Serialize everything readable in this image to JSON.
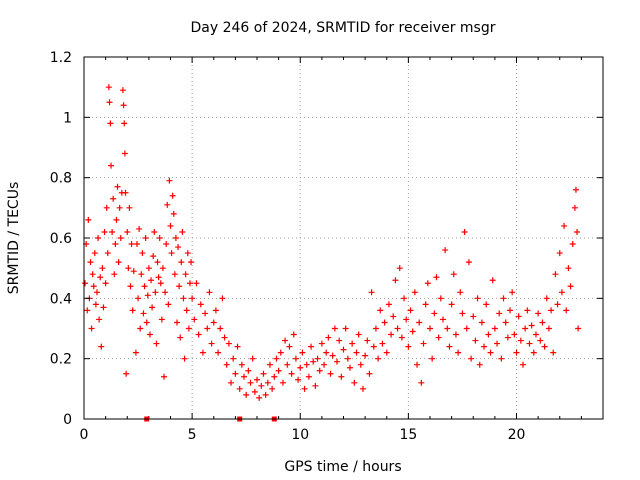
{
  "chart_data": {
    "type": "scatter",
    "title": "Day 246 of 2024, SRMTID for receiver msgr",
    "xlabel": "GPS time / hours",
    "ylabel": "SRMTID / TECUs",
    "xlim": [
      0,
      24
    ],
    "ylim": [
      0,
      1.2
    ],
    "x_ticks": [
      0,
      5,
      10,
      15,
      20
    ],
    "x_tick_labels": [
      "0",
      "5",
      "10",
      "15",
      "20"
    ],
    "y_ticks": [
      0,
      0.2,
      0.4,
      0.6,
      0.8,
      1.0,
      1.2
    ],
    "y_tick_labels": [
      "0",
      "0.2",
      "0.4",
      "0.6",
      "0.8",
      "1",
      "1.2"
    ],
    "grid": true,
    "marker": "+",
    "color": "#ff0000",
    "series": [
      {
        "name": "SRMTID",
        "points": [
          [
            0.05,
            0.45
          ],
          [
            0.1,
            0.58
          ],
          [
            0.15,
            0.36
          ],
          [
            0.2,
            0.66
          ],
          [
            0.25,
            0.4
          ],
          [
            0.3,
            0.52
          ],
          [
            0.35,
            0.3
          ],
          [
            0.4,
            0.48
          ],
          [
            0.45,
            0.44
          ],
          [
            0.5,
            0.55
          ],
          [
            0.55,
            0.38
          ],
          [
            0.6,
            0.42
          ],
          [
            0.65,
            0.6
          ],
          [
            0.7,
            0.33
          ],
          [
            0.75,
            0.47
          ],
          [
            0.8,
            0.24
          ],
          [
            0.85,
            0.5
          ],
          [
            0.9,
            0.37
          ],
          [
            0.95,
            0.62
          ],
          [
            1.0,
            0.45
          ],
          [
            1.05,
            0.7
          ],
          [
            1.1,
            0.55
          ],
          [
            1.15,
            1.1
          ],
          [
            1.18,
            1.05
          ],
          [
            1.22,
            0.98
          ],
          [
            1.25,
            0.84
          ],
          [
            1.3,
            0.62
          ],
          [
            1.35,
            0.73
          ],
          [
            1.4,
            0.48
          ],
          [
            1.45,
            0.58
          ],
          [
            1.5,
            0.66
          ],
          [
            1.55,
            0.77
          ],
          [
            1.6,
            0.52
          ],
          [
            1.65,
            0.7
          ],
          [
            1.7,
            0.6
          ],
          [
            1.75,
            0.75
          ],
          [
            1.8,
            1.09
          ],
          [
            1.83,
            1.04
          ],
          [
            1.86,
            0.98
          ],
          [
            1.89,
            0.88
          ],
          [
            1.92,
            0.75
          ],
          [
            1.95,
            0.15
          ],
          [
            2.0,
            0.62
          ],
          [
            2.05,
            0.5
          ],
          [
            2.1,
            0.7
          ],
          [
            2.15,
            0.44
          ],
          [
            2.2,
            0.58
          ],
          [
            2.25,
            0.36
          ],
          [
            2.3,
            0.49
          ],
          [
            2.4,
            0.22
          ],
          [
            2.45,
            0.58
          ],
          [
            2.5,
            0.4
          ],
          [
            2.55,
            0.63
          ],
          [
            2.6,
            0.3
          ],
          [
            2.65,
            0.48
          ],
          [
            2.7,
            0.55
          ],
          [
            2.75,
            0.35
          ],
          [
            2.8,
            0.44
          ],
          [
            2.85,
            0.6
          ],
          [
            2.9,
            0.32
          ],
          [
            2.95,
            0.41
          ],
          [
            3.0,
            0.5
          ],
          [
            3.05,
            0.28
          ],
          [
            3.1,
            0.46
          ],
          [
            3.15,
            0.37
          ],
          [
            3.2,
            0.54
          ],
          [
            3.25,
            0.62
          ],
          [
            3.3,
            0.42
          ],
          [
            3.35,
            0.25
          ],
          [
            3.4,
            0.52
          ],
          [
            3.45,
            0.47
          ],
          [
            3.5,
            0.6
          ],
          [
            3.55,
            0.45
          ],
          [
            3.6,
            0.33
          ],
          [
            3.65,
            0.5
          ],
          [
            3.7,
            0.14
          ],
          [
            3.75,
            0.42
          ],
          [
            3.8,
            0.58
          ],
          [
            3.85,
            0.71
          ],
          [
            3.9,
            0.38
          ],
          [
            3.95,
            0.79
          ],
          [
            4.0,
            0.64
          ],
          [
            4.05,
            0.55
          ],
          [
            4.1,
            0.74
          ],
          [
            4.15,
            0.68
          ],
          [
            4.2,
            0.48
          ],
          [
            4.25,
            0.6
          ],
          [
            4.3,
            0.32
          ],
          [
            4.35,
            0.57
          ],
          [
            4.4,
            0.44
          ],
          [
            4.45,
            0.27
          ],
          [
            4.5,
            0.52
          ],
          [
            4.55,
            0.62
          ],
          [
            4.6,
            0.4
          ],
          [
            4.65,
            0.2
          ],
          [
            4.7,
            0.48
          ],
          [
            4.75,
            0.36
          ],
          [
            4.8,
            0.55
          ],
          [
            4.85,
            0.3
          ],
          [
            4.9,
            0.45
          ],
          [
            4.95,
            0.52
          ],
          [
            5.0,
            0.4
          ],
          [
            5.1,
            0.33
          ],
          [
            5.2,
            0.45
          ],
          [
            5.3,
            0.28
          ],
          [
            5.4,
            0.38
          ],
          [
            5.5,
            0.22
          ],
          [
            5.6,
            0.35
          ],
          [
            5.7,
            0.3
          ],
          [
            5.8,
            0.42
          ],
          [
            5.9,
            0.25
          ],
          [
            6.0,
            0.32
          ],
          [
            6.1,
            0.36
          ],
          [
            6.2,
            0.22
          ],
          [
            6.3,
            0.3
          ],
          [
            6.4,
            0.4
          ],
          [
            6.5,
            0.27
          ],
          [
            6.6,
            0.18
          ],
          [
            6.7,
            0.25
          ],
          [
            6.8,
            0.12
          ],
          [
            6.9,
            0.2
          ],
          [
            7.0,
            0.15
          ],
          [
            7.1,
            0.24
          ],
          [
            7.2,
            0.1
          ],
          [
            7.3,
            0.18
          ],
          [
            7.4,
            0.14
          ],
          [
            7.5,
            0.08
          ],
          [
            7.6,
            0.16
          ],
          [
            7.7,
            0.12
          ],
          [
            7.8,
            0.2
          ],
          [
            7.9,
            0.09
          ],
          [
            8.0,
            0.13
          ],
          [
            8.1,
            0.07
          ],
          [
            8.2,
            0.11
          ],
          [
            8.3,
            0.15
          ],
          [
            8.4,
            0.08
          ],
          [
            8.5,
            0.12
          ],
          [
            8.6,
            0.18
          ],
          [
            8.7,
            0.1
          ],
          [
            8.8,
            0.14
          ],
          [
            8.9,
            0.2
          ],
          [
            9.0,
            0.16
          ],
          [
            9.1,
            0.22
          ],
          [
            9.2,
            0.12
          ],
          [
            9.3,
            0.26
          ],
          [
            9.4,
            0.18
          ],
          [
            9.5,
            0.24
          ],
          [
            9.6,
            0.15
          ],
          [
            9.7,
            0.28
          ],
          [
            9.8,
            0.2
          ],
          [
            9.9,
            0.13
          ],
          [
            10.0,
            0.17
          ],
          [
            10.1,
            0.22
          ],
          [
            10.2,
            0.1
          ],
          [
            10.3,
            0.18
          ],
          [
            10.4,
            0.14
          ],
          [
            10.5,
            0.24
          ],
          [
            10.6,
            0.19
          ],
          [
            10.7,
            0.11
          ],
          [
            10.8,
            0.2
          ],
          [
            10.9,
            0.16
          ],
          [
            11.0,
            0.25
          ],
          [
            11.1,
            0.18
          ],
          [
            11.2,
            0.22
          ],
          [
            11.3,
            0.27
          ],
          [
            11.4,
            0.15
          ],
          [
            11.5,
            0.21
          ],
          [
            11.6,
            0.3
          ],
          [
            11.7,
            0.19
          ],
          [
            11.8,
            0.26
          ],
          [
            11.9,
            0.14
          ],
          [
            12.0,
            0.23
          ],
          [
            12.1,
            0.3
          ],
          [
            12.2,
            0.2
          ],
          [
            12.3,
            0.17
          ],
          [
            12.4,
            0.25
          ],
          [
            12.5,
            0.12
          ],
          [
            12.6,
            0.22
          ],
          [
            12.7,
            0.28
          ],
          [
            12.8,
            0.18
          ],
          [
            12.9,
            0.1
          ],
          [
            13.0,
            0.21
          ],
          [
            13.1,
            0.26
          ],
          [
            13.2,
            0.15
          ],
          [
            13.3,
            0.42
          ],
          [
            13.4,
            0.24
          ],
          [
            13.5,
            0.3
          ],
          [
            13.6,
            0.2
          ],
          [
            13.7,
            0.36
          ],
          [
            13.8,
            0.25
          ],
          [
            13.9,
            0.32
          ],
          [
            14.0,
            0.22
          ],
          [
            14.1,
            0.38
          ],
          [
            14.2,
            0.28
          ],
          [
            14.3,
            0.34
          ],
          [
            14.4,
            0.46
          ],
          [
            14.5,
            0.3
          ],
          [
            14.6,
            0.5
          ],
          [
            14.7,
            0.27
          ],
          [
            14.8,
            0.4
          ],
          [
            14.9,
            0.33
          ],
          [
            15.0,
            0.24
          ],
          [
            15.1,
            0.36
          ],
          [
            15.2,
            0.29
          ],
          [
            15.3,
            0.42
          ],
          [
            15.4,
            0.18
          ],
          [
            15.5,
            0.32
          ],
          [
            15.6,
            0.12
          ],
          [
            15.7,
            0.25
          ],
          [
            15.8,
            0.38
          ],
          [
            15.9,
            0.45
          ],
          [
            16.0,
            0.3
          ],
          [
            16.1,
            0.2
          ],
          [
            16.2,
            0.35
          ],
          [
            16.3,
            0.47
          ],
          [
            16.4,
            0.27
          ],
          [
            16.5,
            0.4
          ],
          [
            16.6,
            0.33
          ],
          [
            16.7,
            0.56
          ],
          [
            16.8,
            0.3
          ],
          [
            16.9,
            0.24
          ],
          [
            17.0,
            0.38
          ],
          [
            17.1,
            0.48
          ],
          [
            17.2,
            0.28
          ],
          [
            17.3,
            0.22
          ],
          [
            17.4,
            0.42
          ],
          [
            17.5,
            0.35
          ],
          [
            17.6,
            0.62
          ],
          [
            17.7,
            0.3
          ],
          [
            17.8,
            0.52
          ],
          [
            17.9,
            0.2
          ],
          [
            18.0,
            0.34
          ],
          [
            18.1,
            0.26
          ],
          [
            18.2,
            0.4
          ],
          [
            18.3,
            0.18
          ],
          [
            18.4,
            0.32
          ],
          [
            18.5,
            0.24
          ],
          [
            18.6,
            0.38
          ],
          [
            18.7,
            0.28
          ],
          [
            18.8,
            0.22
          ],
          [
            18.9,
            0.46
          ],
          [
            19.0,
            0.3
          ],
          [
            19.1,
            0.25
          ],
          [
            19.2,
            0.35
          ],
          [
            19.3,
            0.2
          ],
          [
            19.4,
            0.4
          ],
          [
            19.5,
            0.32
          ],
          [
            19.6,
            0.27
          ],
          [
            19.7,
            0.36
          ],
          [
            19.8,
            0.42
          ],
          [
            19.9,
            0.28
          ],
          [
            20.0,
            0.22
          ],
          [
            20.1,
            0.34
          ],
          [
            20.2,
            0.26
          ],
          [
            20.3,
            0.18
          ],
          [
            20.4,
            0.3
          ],
          [
            20.5,
            0.36
          ],
          [
            20.6,
            0.25
          ],
          [
            20.7,
            0.31
          ],
          [
            20.8,
            0.22
          ],
          [
            20.9,
            0.28
          ],
          [
            21.0,
            0.35
          ],
          [
            21.1,
            0.26
          ],
          [
            21.2,
            0.32
          ],
          [
            21.3,
            0.24
          ],
          [
            21.4,
            0.4
          ],
          [
            21.5,
            0.3
          ],
          [
            21.6,
            0.36
          ],
          [
            21.7,
            0.22
          ],
          [
            21.8,
            0.48
          ],
          [
            21.9,
            0.38
          ],
          [
            22.0,
            0.55
          ],
          [
            22.1,
            0.42
          ],
          [
            22.2,
            0.64
          ],
          [
            22.3,
            0.36
          ],
          [
            22.4,
            0.5
          ],
          [
            22.5,
            0.44
          ],
          [
            22.6,
            0.58
          ],
          [
            22.7,
            0.7
          ],
          [
            22.75,
            0.76
          ],
          [
            22.8,
            0.62
          ],
          [
            22.85,
            0.3
          ]
        ]
      }
    ],
    "axis_markers": [
      2.9,
      7.2,
      8.8
    ]
  }
}
